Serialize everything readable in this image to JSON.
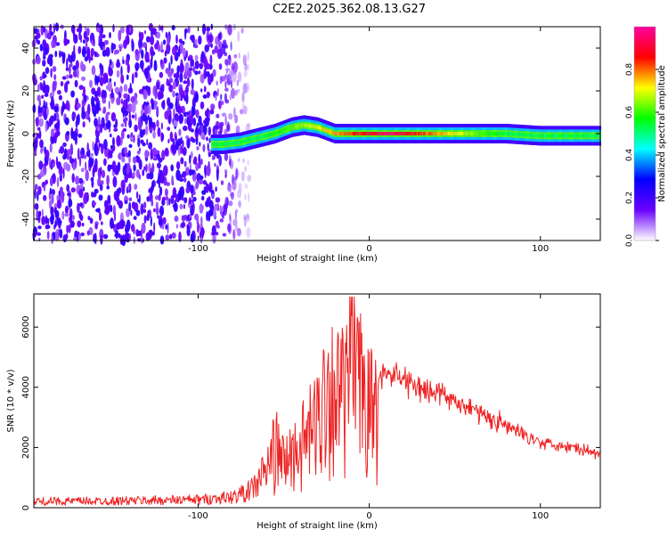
{
  "title": "C2E2.2025.362.08.13.G27",
  "chart_data": [
    {
      "type": "heatmap",
      "name": "spectrogram",
      "xlabel": "Height of straight line (km)",
      "ylabel": "Frequency (Hz)",
      "xlim": [
        -196,
        135
      ],
      "ylim": [
        -50,
        50
      ],
      "xticks": [
        -100,
        0,
        100
      ],
      "yticks": [
        -40,
        -20,
        0,
        20,
        40
      ],
      "noise_region_x": [
        -196,
        -70
      ],
      "signal_ridge": {
        "x": [
          -92,
          -85,
          -75,
          -65,
          -55,
          -45,
          -38,
          -30,
          -20,
          -10,
          0,
          20,
          40,
          60,
          80,
          100,
          120,
          135
        ],
        "frequency_hz": [
          -5,
          -5,
          -4,
          -2,
          0,
          3,
          4,
          3,
          0,
          0,
          0,
          0,
          0,
          0,
          0,
          -1,
          -1,
          -1
        ]
      },
      "colorbar": {
        "label": "Normalized spectral amplitude",
        "range": [
          0,
          1
        ],
        "ticks": [
          "0.0",
          "0.2",
          "0.4",
          "0.6",
          "0.8"
        ],
        "colors": [
          "#ffffff",
          "#6a00ff",
          "#0000ff",
          "#00ffff",
          "#00ff00",
          "#ffff00",
          "#ff0000",
          "#ff00a0"
        ]
      }
    },
    {
      "type": "line",
      "name": "snr",
      "xlabel": "Height of straight line (km)",
      "ylabel": "SNR (10 * v/v)",
      "xlim": [
        -196,
        135
      ],
      "ylim": [
        0,
        7100
      ],
      "xticks": [
        -100,
        0,
        100
      ],
      "yticks": [
        0,
        2000,
        4000,
        6000
      ],
      "color": "#ee2222",
      "envelope": {
        "x": [
          -196,
          -150,
          -100,
          -80,
          -70,
          -60,
          -55,
          -50,
          -40,
          -30,
          -25,
          -20,
          -15,
          -10,
          -5,
          0,
          10,
          20,
          30,
          40,
          60,
          80,
          100,
          120,
          135
        ],
        "y": [
          300,
          320,
          380,
          500,
          800,
          1500,
          2500,
          1800,
          2500,
          3500,
          5000,
          4700,
          4500,
          4800,
          5000,
          4000,
          4500,
          4300,
          4000,
          3800,
          3300,
          2700,
          2200,
          2000,
          1800
        ]
      }
    }
  ]
}
